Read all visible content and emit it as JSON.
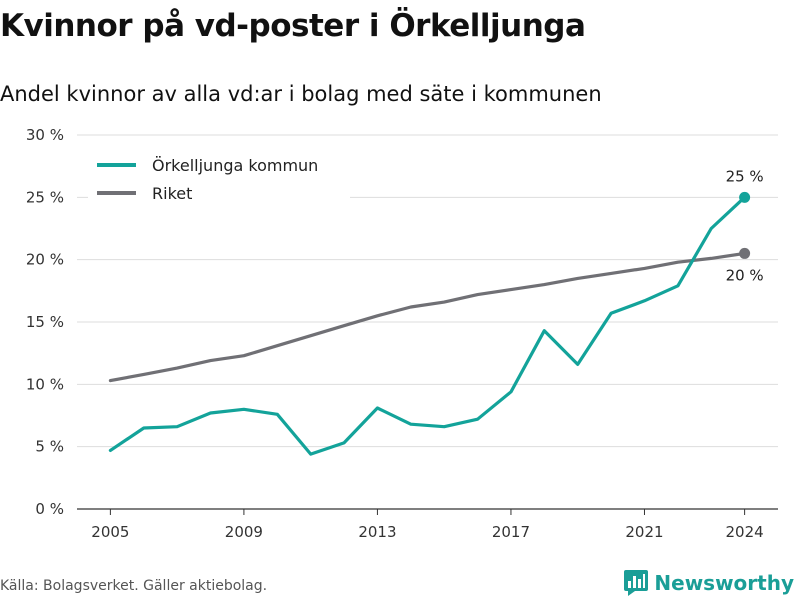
{
  "header": {
    "title": "Kvinnor på vd-poster i Örkelljunga",
    "subtitle": "Andel kvinnor av alla vd:ar i bolag med säte i kommunen"
  },
  "footer": {
    "source": "Källa: Bolagsverket. Gäller aktiebolag.",
    "brand": "Newsworthy",
    "brand_icon": "bar-chart-logo-icon"
  },
  "colors": {
    "kommun": "#13a39a",
    "riket": "#707075",
    "grid": "#dddddd",
    "brand": "#1a9e97"
  },
  "chart_data": {
    "type": "line",
    "x": [
      2005,
      2006,
      2007,
      2008,
      2009,
      2010,
      2011,
      2012,
      2013,
      2014,
      2015,
      2016,
      2017,
      2018,
      2019,
      2020,
      2021,
      2022,
      2023,
      2024
    ],
    "series": [
      {
        "name": "Örkelljunga kommun",
        "values": [
          4.7,
          6.5,
          6.6,
          7.7,
          8.0,
          7.6,
          4.4,
          5.3,
          8.1,
          6.8,
          6.6,
          7.2,
          9.4,
          14.3,
          11.6,
          15.7,
          16.7,
          17.9,
          22.5,
          25.0
        ],
        "end_label": "25 %"
      },
      {
        "name": "Riket",
        "values": [
          10.3,
          10.8,
          11.3,
          11.9,
          12.3,
          13.1,
          13.9,
          14.7,
          15.5,
          16.2,
          16.6,
          17.2,
          17.6,
          18.0,
          18.5,
          18.9,
          19.3,
          19.8,
          20.1,
          20.5
        ],
        "end_label": "20 %"
      }
    ],
    "y_ticks": [
      0,
      5,
      10,
      15,
      20,
      25,
      30
    ],
    "y_tick_labels": [
      "0 %",
      "5 %",
      "10 %",
      "15 %",
      "20 %",
      "25 %",
      "30 %"
    ],
    "x_ticks": [
      2005,
      2009,
      2013,
      2017,
      2021,
      2024
    ],
    "ylim": [
      0,
      30
    ],
    "xlim": [
      2004,
      2025
    ],
    "grid": true,
    "legend_position": "top-left"
  }
}
